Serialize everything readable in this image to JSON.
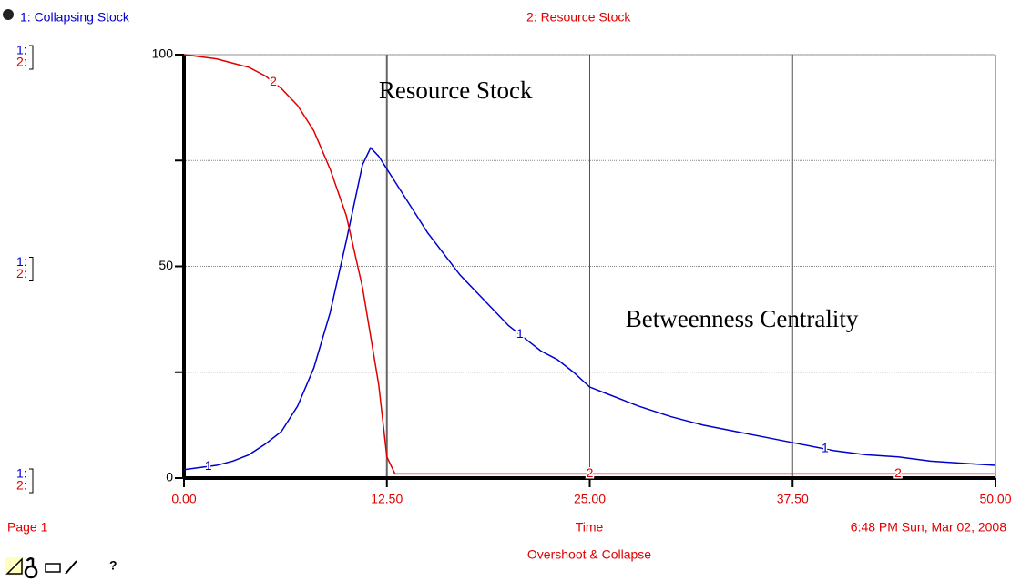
{
  "chart_data": {
    "type": "line",
    "title": "Overshoot & Collapse",
    "x_label": "Time",
    "page": "Page 1",
    "timestamp": "6:48 PM  Sun, Mar 02, 2008",
    "help": "?",
    "annotations": [
      {
        "text": "Resource Stock",
        "x": 12,
        "y": 91
      },
      {
        "text": "Betweenness Centrality",
        "x": 27.2,
        "y": 37
      }
    ],
    "xlim": [
      0,
      50
    ],
    "xticks": [
      {
        "value": 0,
        "label": "0.00"
      },
      {
        "value": 12.5,
        "label": "12.50"
      },
      {
        "value": 25,
        "label": "25.00"
      },
      {
        "value": 37.5,
        "label": "37.50"
      },
      {
        "value": 50,
        "label": "50.00"
      }
    ],
    "ylim": [
      0,
      100
    ],
    "yticks": [
      0,
      50,
      100
    ],
    "minor_yticks": [
      25,
      75
    ],
    "grid": true,
    "series": [
      {
        "name": "1: Collapsing Stock",
        "line_label": "1",
        "axis_key": "1:",
        "color": "#0000cc",
        "label_at": [
          1.5,
          20.7,
          39.5
        ],
        "x": [
          0,
          1,
          2,
          3,
          4,
          5,
          6,
          7,
          8,
          9,
          10,
          11,
          11.5,
          12,
          13,
          14,
          15,
          16,
          17,
          18,
          19,
          20,
          21,
          22,
          23,
          24,
          25,
          26,
          27,
          28,
          30,
          32,
          34,
          36,
          38,
          40,
          42,
          44,
          46,
          48,
          50
        ],
        "values": [
          2,
          2.5,
          3,
          4,
          5.5,
          8,
          11,
          17,
          26,
          39,
          56,
          74,
          78,
          76,
          70,
          64,
          58,
          53,
          48,
          44,
          40,
          36,
          33,
          30,
          28,
          25,
          21.5,
          20,
          18.5,
          17,
          14.5,
          12.5,
          11,
          9.5,
          8,
          6.5,
          5.5,
          5,
          4,
          3.5,
          3
        ]
      },
      {
        "name": "2: Resource Stock",
        "line_label": "2",
        "axis_key": "2:",
        "color": "#e00000",
        "label_at": [
          5.5,
          25,
          44
        ],
        "x": [
          0,
          2,
          4,
          5,
          6,
          7,
          8,
          9,
          10,
          11,
          12,
          12.5,
          13,
          20,
          30,
          40,
          50
        ],
        "values": [
          100,
          99,
          97,
          95,
          92,
          88,
          82,
          73,
          62,
          45,
          22,
          5,
          1,
          1,
          1,
          1,
          1
        ]
      }
    ]
  }
}
